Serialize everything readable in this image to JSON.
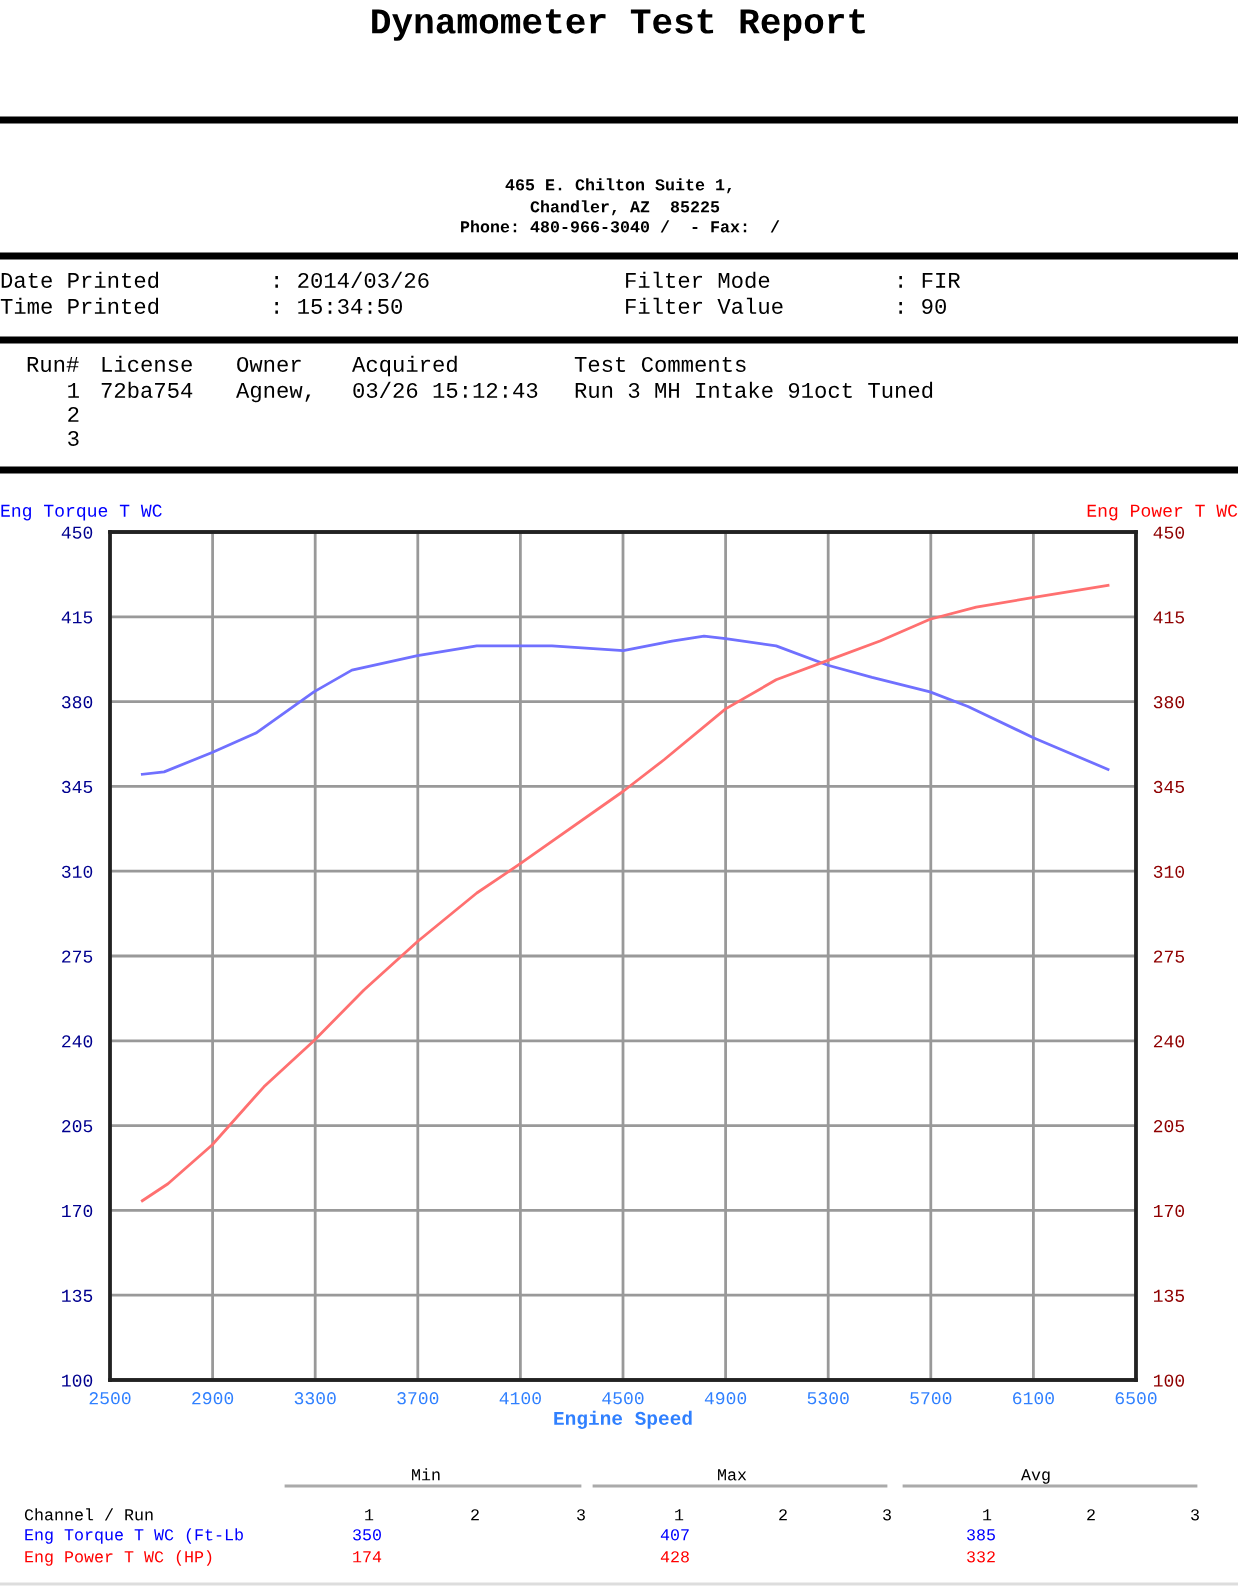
{
  "chart_data": {
    "type": "line",
    "title": "Dynamometer Test Report",
    "xlabel": "Engine Speed",
    "ylabel": "Eng Torque T WC",
    "y2label": "Eng Power T WC",
    "series": [
      {
        "color": "#7070ff",
        "x": [
          2626,
          2711,
          2898,
          3069,
          3295,
          3443,
          3699,
          3930,
          4223,
          4501,
          4691,
          4816,
          4900,
          5097,
          5299,
          5471,
          5697,
          5845,
          6102,
          6391
        ],
        "values": [
          350,
          351,
          359,
          367,
          384,
          393,
          399,
          403,
          403,
          401,
          405,
          407,
          406,
          403,
          395,
          390,
          384,
          378,
          365,
          352
        ]
      },
      {
        "color": "#ff7070",
        "axis": "y2",
        "x": [
          2626,
          2726,
          2898,
          3100,
          3295,
          3490,
          3699,
          3930,
          4098,
          4501,
          4660,
          4900,
          5097,
          5299,
          5502,
          5697,
          5877,
          6102,
          6391
        ],
        "values": [
          174,
          181,
          197,
          221,
          240,
          261,
          281,
          301,
          313,
          343,
          356,
          377,
          389,
          397,
          405,
          414,
          419,
          423,
          428
        ]
      }
    ],
    "xlim": [
      2500,
      6500
    ],
    "xticks": [
      2500,
      2900,
      3300,
      3700,
      4100,
      4500,
      4900,
      5300,
      5700,
      6100,
      6500
    ],
    "ylim": [
      100,
      450
    ],
    "yticks": [
      100,
      135,
      170,
      205,
      240,
      275,
      310,
      345,
      380,
      415,
      450
    ],
    "y2lim": [
      100,
      450
    ],
    "y2ticks": [
      100,
      135,
      170,
      205,
      240,
      275,
      310,
      345,
      380,
      415,
      450
    ],
    "grid": true,
    "legend": false,
    "marker": "none",
    "line_style": "solid",
    "annotations": [
      "465 E. Chilton Suite 1,",
      " Chandler, AZ  85225",
      "Phone: 480-966-3040 /  - Fax:  /",
      "Date Printed",
      ": 2014/03/26",
      "Filter Mode",
      ": FIR",
      "Time Printed",
      ": 15:34:50",
      "Filter Value",
      ": 90",
      "Run#",
      "License",
      "Owner",
      "Acquired",
      "Test Comments",
      "1",
      "72ba754",
      "Agnew,",
      "03/26 15:12:43",
      "Run 3 MH Intake 91oct Tuned",
      "2",
      "3",
      "Min",
      "Max",
      "Avg",
      "Channel / Run",
      "1",
      "2",
      "3",
      "1",
      "2",
      "3",
      "1",
      "2",
      "3",
      "Eng Torque T WC (Ft-Lb",
      "350",
      "407",
      "385",
      "Eng Power T WC (HP)",
      "174",
      "428",
      "332"
    ]
  }
}
